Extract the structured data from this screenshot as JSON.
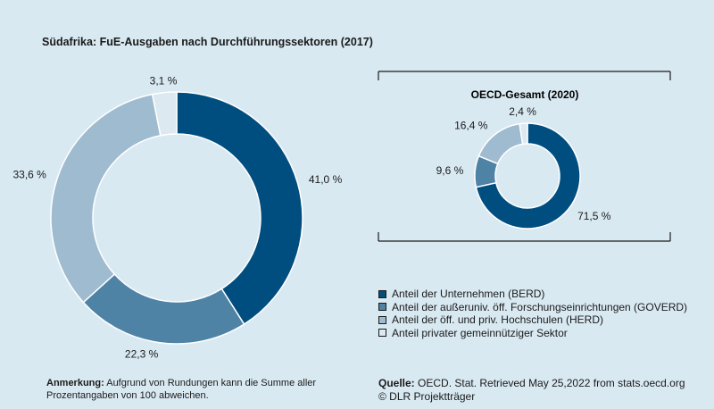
{
  "main_title": "Südafrika: FuE-Ausgaben nach Durchführungssektoren (2017)",
  "oecd_title": "OECD-Gesamt (2020)",
  "chart_data": [
    {
      "type": "pie",
      "variant": "donut",
      "title": "Südafrika: FuE-Ausgaben nach Durchführungssektoren (2017)",
      "categories": [
        "Anteil der Unternehmen (BERD)",
        "Anteil der außeruniv. öff. Forschungseinrichtungen (GOVERD)",
        "Anteil der öff. und priv. Hochschulen (HERD)",
        "Anteil privater gemeinnütziger Sektor"
      ],
      "values": [
        41.0,
        22.3,
        33.6,
        3.1
      ],
      "labels": [
        "41,0 %",
        "22,3 %",
        "33,6 %",
        "3,1 %"
      ]
    },
    {
      "type": "pie",
      "variant": "donut",
      "title": "OECD-Gesamt (2020)",
      "categories": [
        "Anteil der Unternehmen (BERD)",
        "Anteil der außeruniv. öff. Forschungseinrichtungen (GOVERD)",
        "Anteil der öff. und priv. Hochschulen (HERD)",
        "Anteil privater gemeinnütziger Sektor"
      ],
      "values": [
        71.5,
        9.6,
        16.4,
        2.4
      ],
      "labels": [
        "71,5 %",
        "9,6 %",
        "16,4 %",
        "2,4 %"
      ]
    }
  ],
  "colors": [
    "#004e80",
    "#4f83a6",
    "#9ebbd0",
    "#dce9f1"
  ],
  "legend": [
    "Anteil der Unternehmen (BERD)",
    "Anteil der außeruniv. öff. Forschungseinrichtungen (GOVERD)",
    "Anteil der öff. und priv. Hochschulen (HERD)",
    "Anteil privater gemeinnütziger Sektor"
  ],
  "note": {
    "label": "Anmerkung:",
    "text": " Aufgrund von Rundungen kann die Summe aller Prozentangaben von 100 abweichen."
  },
  "source": {
    "label": "Quelle:",
    "text": " OECD. Stat. Retrieved May 25,2022 from stats.oecd.org",
    "credit": "© DLR Projektträger"
  }
}
